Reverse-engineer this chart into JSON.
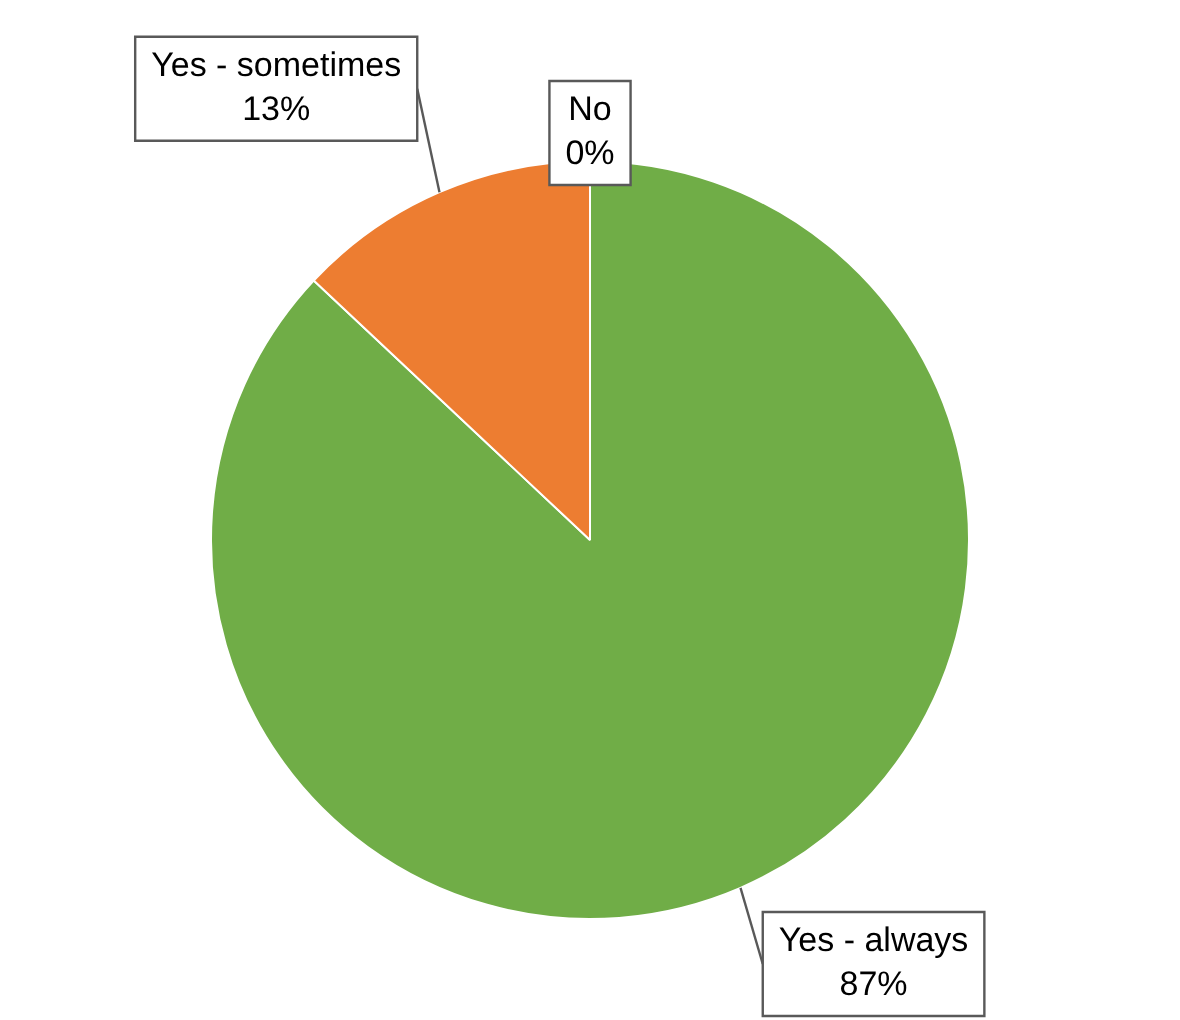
{
  "chart_data": {
    "type": "pie",
    "categories": [
      "Yes - always",
      "Yes - sometimes",
      "No"
    ],
    "values": [
      87,
      13,
      0
    ],
    "colors": [
      "#70ad47",
      "#ed7d31",
      "#4472c4"
    ],
    "value_labels": [
      "87%",
      "13%",
      "0%"
    ],
    "legend": false
  }
}
